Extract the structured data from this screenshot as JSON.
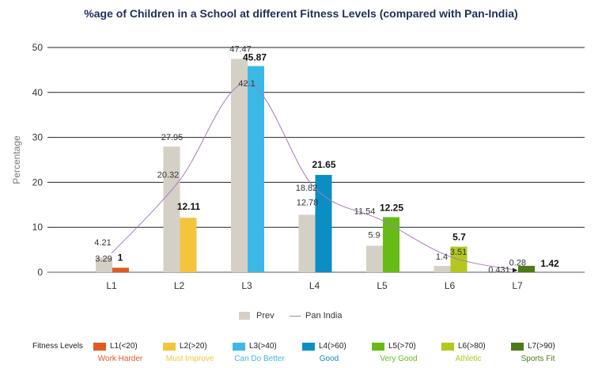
{
  "chart_data": {
    "type": "bar",
    "title": "%age of Children in a School at different Fitness Levels (compared with Pan-India)",
    "ylabel": "Percentage",
    "xlabel": "",
    "ylim": [
      0,
      50
    ],
    "yticks": [
      0,
      10,
      20,
      30,
      40,
      50
    ],
    "grid": true,
    "categories": [
      "L1",
      "L2",
      "L3",
      "L4",
      "L5",
      "L6",
      "L7"
    ],
    "series": [
      {
        "name": "Prev",
        "kind": "bar",
        "values": [
          3.29,
          27.95,
          47.47,
          12.78,
          5.9,
          1.4,
          0.28
        ],
        "color": "#d5d0c6"
      },
      {
        "name": "",
        "kind": "bar",
        "values": [
          1,
          12.11,
          45.87,
          21.65,
          12.25,
          5.7,
          1.42
        ],
        "colors": [
          "#e05a22",
          "#f4c43c",
          "#3cb8e6",
          "#0b8ec4",
          "#66bb17",
          "#b3c71f",
          "#4b7a18"
        ]
      },
      {
        "name": "Pan India",
        "kind": "line",
        "values": [
          4.21,
          20.32,
          42.1,
          18.82,
          11.54,
          3.51,
          0.431
        ],
        "color": "#a77ac0"
      }
    ],
    "legend": {
      "position": "bottom"
    }
  },
  "fitness_legend": {
    "title": "Fitness Levels",
    "items": [
      {
        "label": "L1(<20)",
        "desc": "Work Harder",
        "color": "#e05a22"
      },
      {
        "label": "L2(>20)",
        "desc": "Must Improve",
        "color": "#f4c43c"
      },
      {
        "label": "L3(>40)",
        "desc": "Can Do Better",
        "color": "#3cb8e6"
      },
      {
        "label": "L4(>60)",
        "desc": "Good",
        "color": "#0b8ec4"
      },
      {
        "label": "L5(>70)",
        "desc": "Very Good",
        "color": "#66bb17"
      },
      {
        "label": "L6(>80)",
        "desc": "Athletic",
        "color": "#b3c71f"
      },
      {
        "label": "L7(>90)",
        "desc": "Sports Fit",
        "color": "#4b7a18"
      }
    ]
  }
}
